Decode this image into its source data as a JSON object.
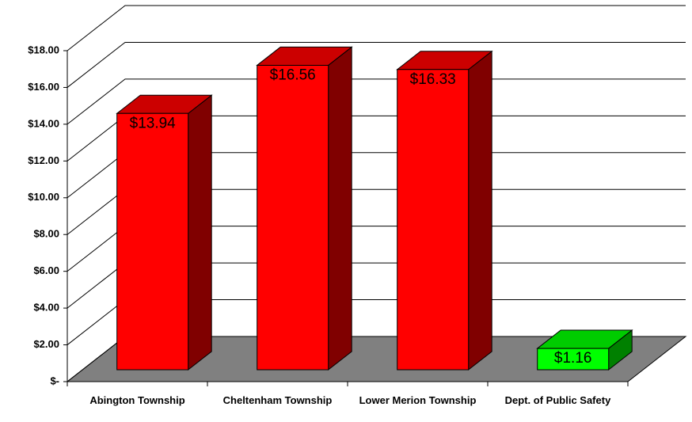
{
  "chart_data": {
    "type": "bar3d",
    "categories": [
      "Abington Township",
      "Cheltenham Township",
      "Lower Merion Township",
      "Dept. of Public Safety"
    ],
    "values": [
      13.94,
      16.56,
      16.33,
      1.16
    ],
    "value_labels": [
      "$13.94",
      "$16.56",
      "$16.33",
      "$1.16"
    ],
    "colors": [
      "#ff0000",
      "#ff0000",
      "#ff0000",
      "#00ff00"
    ],
    "ylim": [
      0,
      18
    ],
    "yticks": [
      {
        "value": 0,
        "label": "$-"
      },
      {
        "value": 2,
        "label": "$2.00"
      },
      {
        "value": 4,
        "label": "$4.00"
      },
      {
        "value": 6,
        "label": "$6.00"
      },
      {
        "value": 8,
        "label": "$8.00"
      },
      {
        "value": 10,
        "label": "$10.00"
      },
      {
        "value": 12,
        "label": "$12.00"
      },
      {
        "value": 14,
        "label": "$14.00"
      },
      {
        "value": 16,
        "label": "$16.00"
      },
      {
        "value": 18,
        "label": "$18.00"
      }
    ],
    "grid": true
  }
}
